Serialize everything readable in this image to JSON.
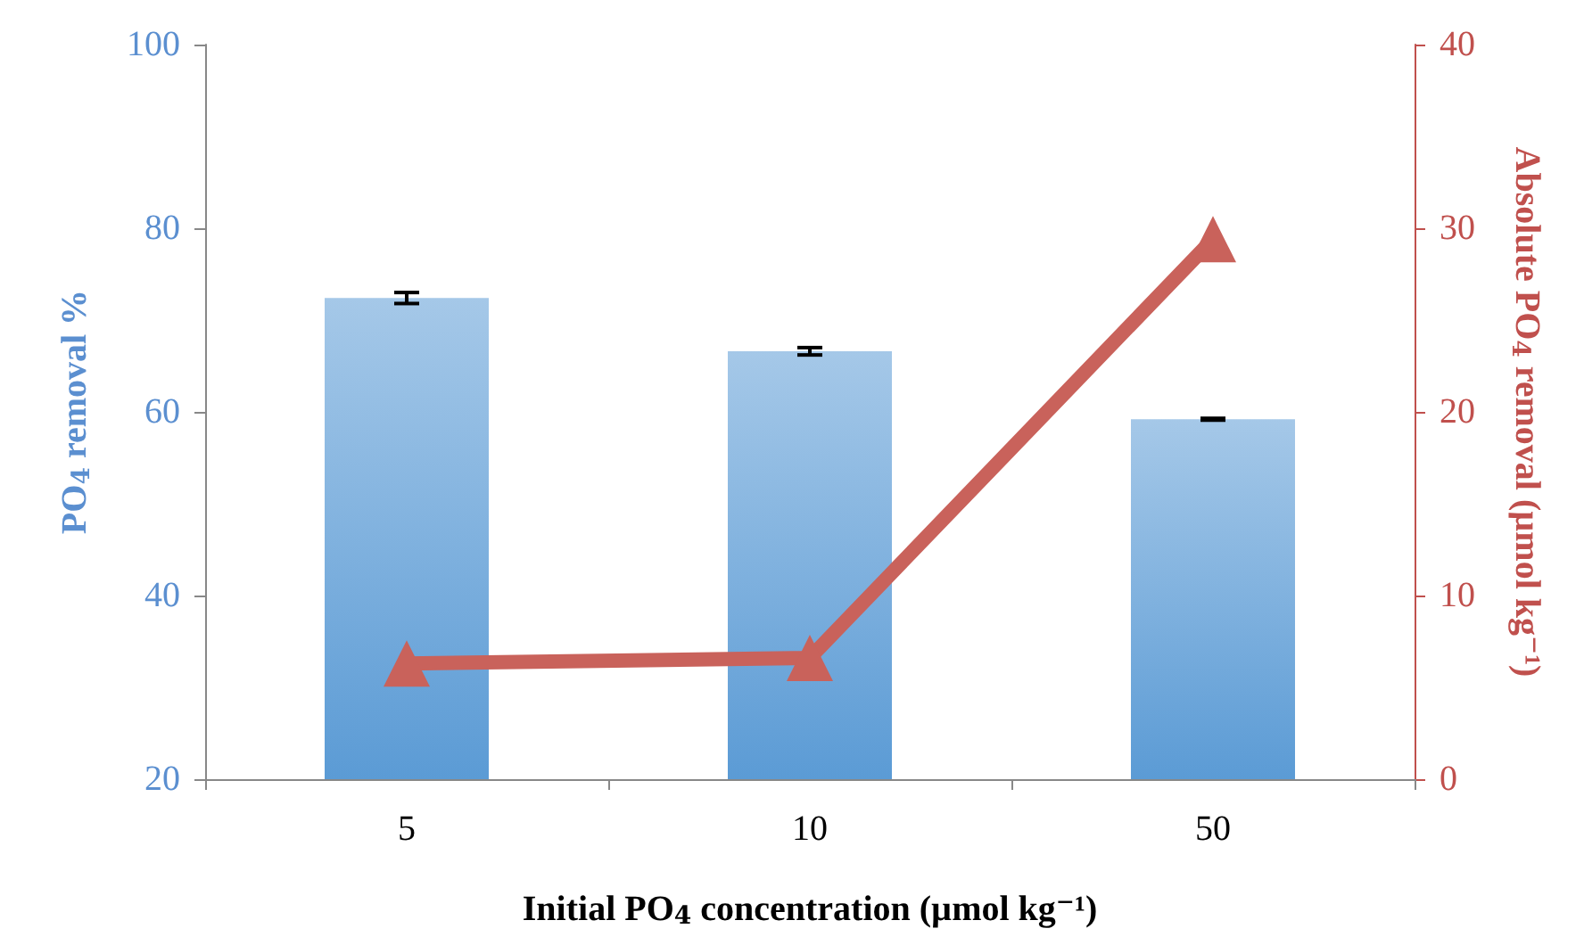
{
  "chart_data": {
    "type": "bar",
    "xlabel": "Initial PO$_{4}$ concentration (µmol kg⁻¹)",
    "ylabel": "PO$_{4}$ removal %",
    "y2label": "Absolute PO$_{4}$ removal (µmol kg⁻¹)",
    "categories": [
      "5",
      "10",
      "50"
    ],
    "series": [
      {
        "color": "#5b9bd5",
        "values": [
          72.4,
          66.6,
          59.2
        ],
        "errors": [
          0.6,
          0.4,
          0.1
        ]
      },
      {
        "type": "line",
        "axis": "y2",
        "color": "#c9625b",
        "values": [
          6.3,
          6.6,
          29.4
        ],
        "marker": "triangle"
      }
    ],
    "ylim": [
      20,
      100
    ],
    "yticks": [
      20,
      40,
      60,
      80,
      100
    ],
    "y2lim": [
      0,
      40
    ],
    "y2ticks": [
      0,
      10,
      20,
      30,
      40
    ],
    "grid": false
  }
}
